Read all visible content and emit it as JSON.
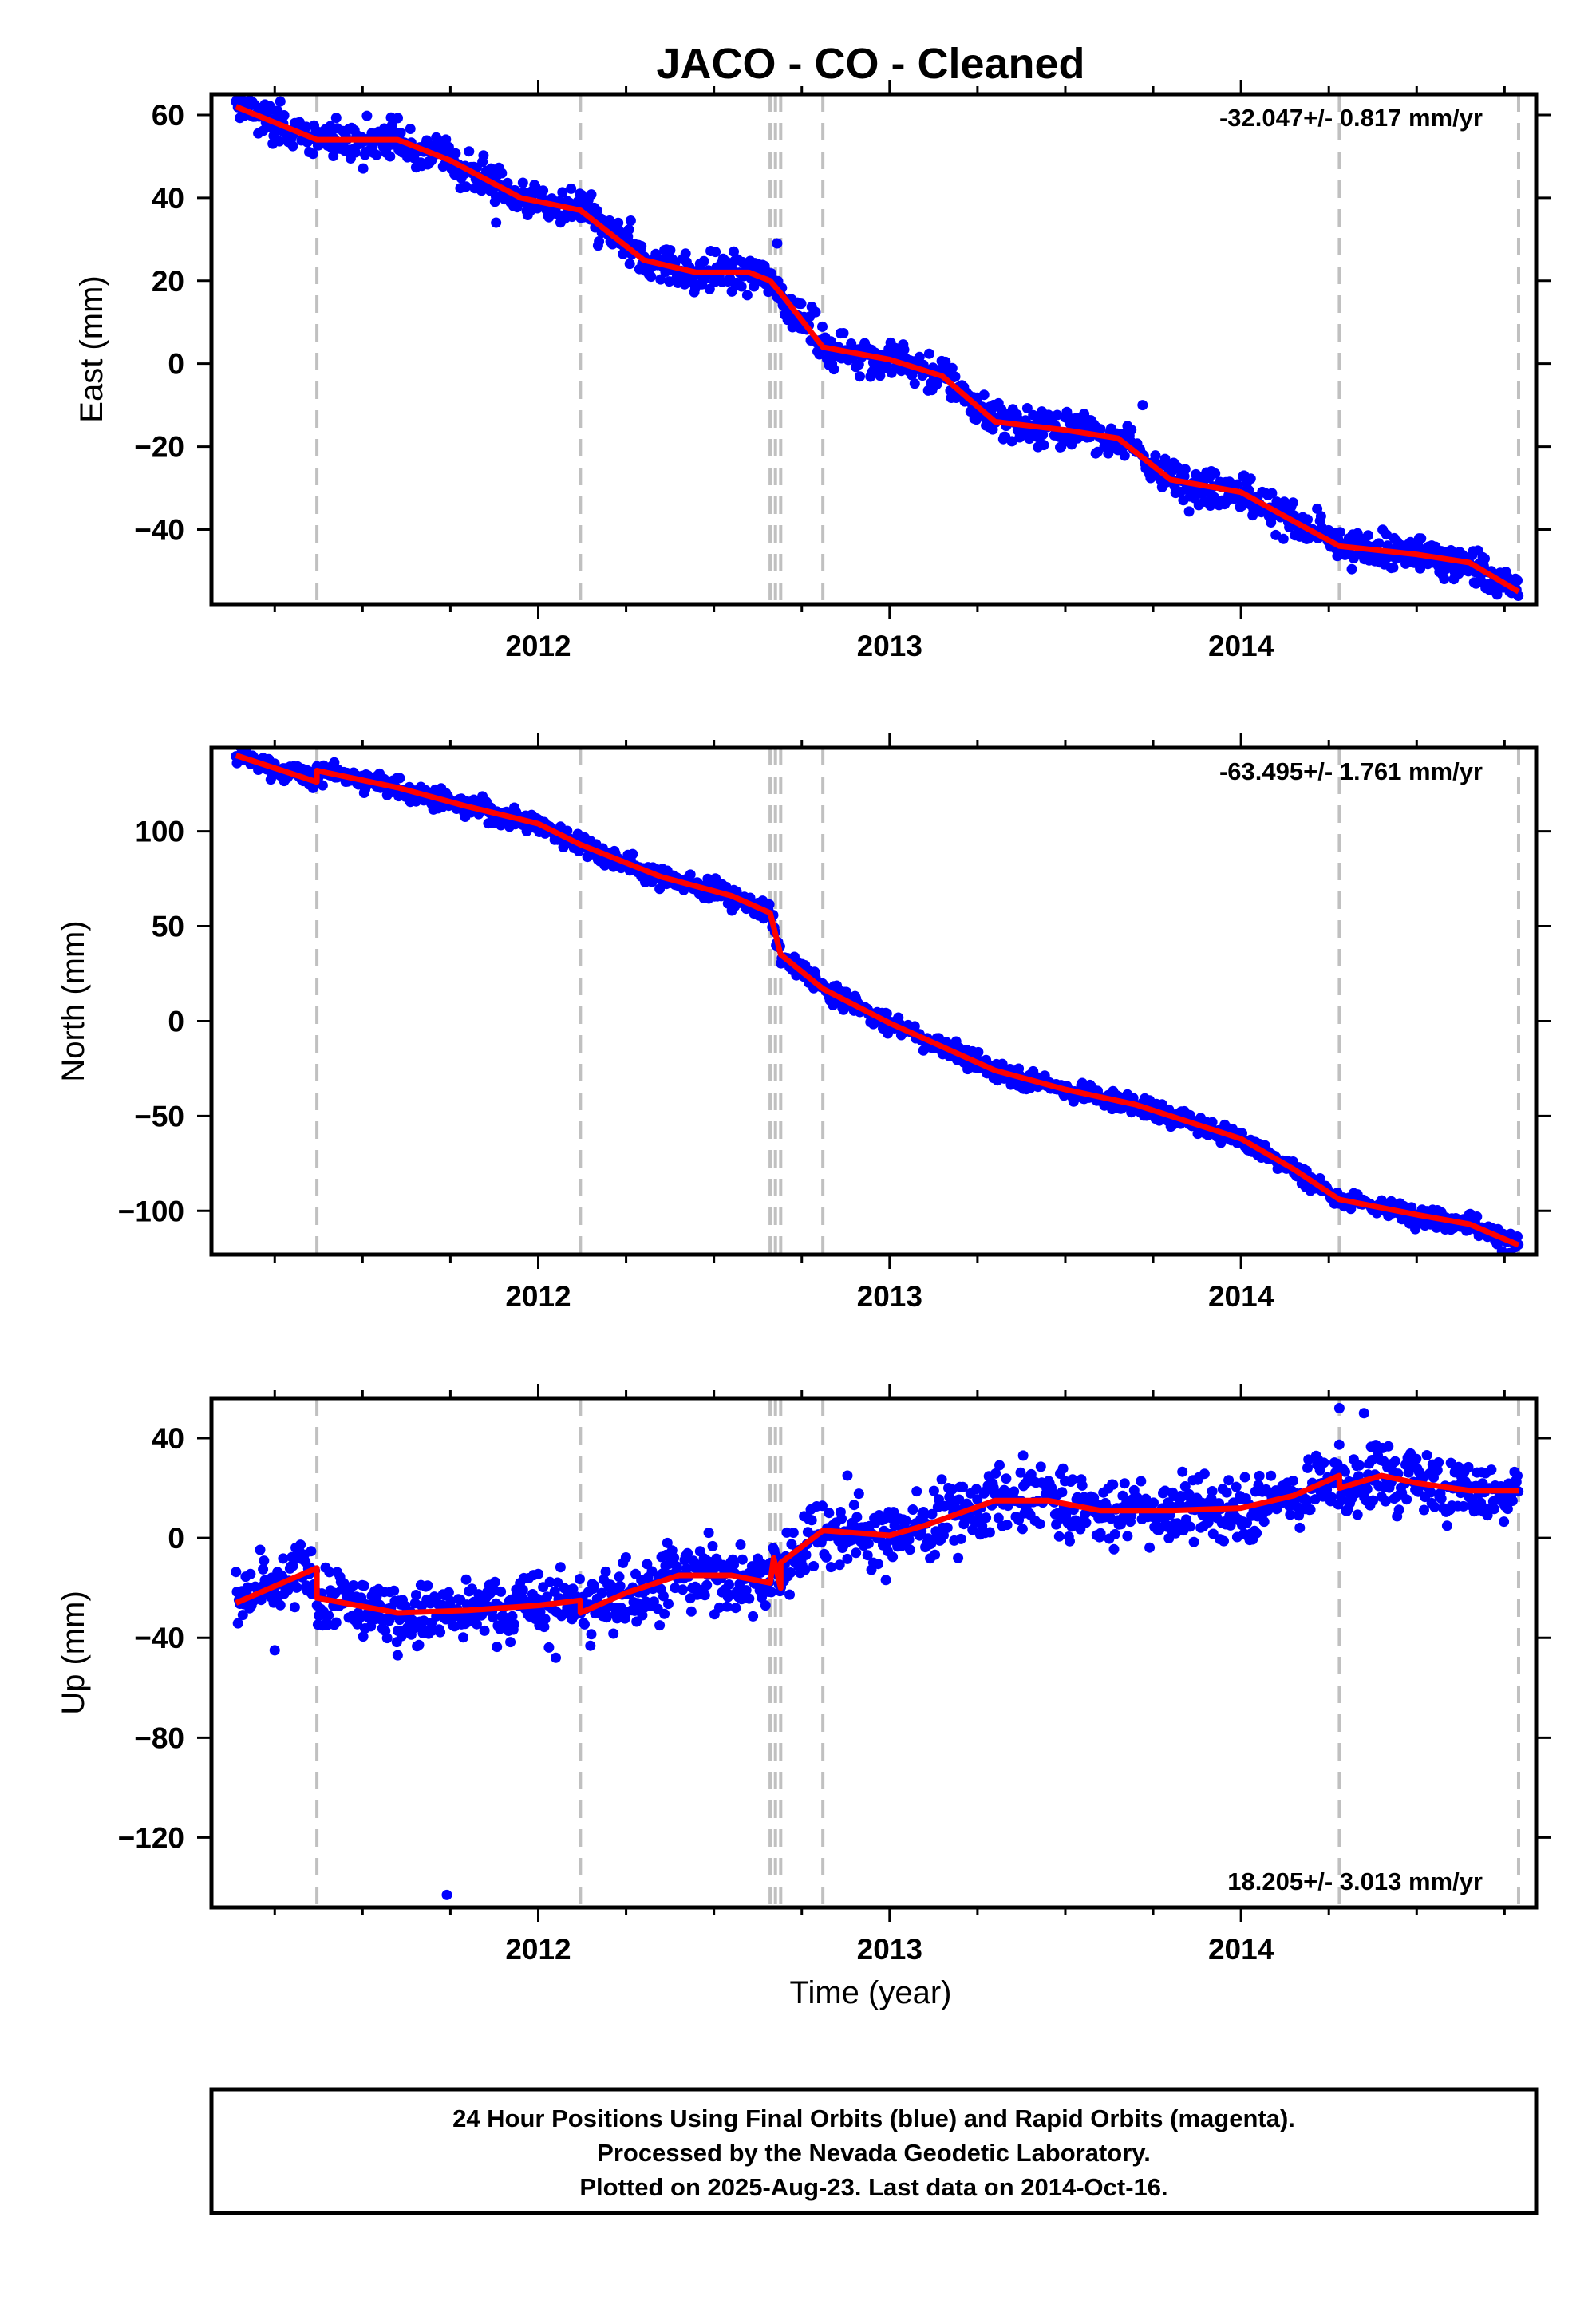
{
  "title": "JACO  - CO - Cleaned",
  "xlabel": "Time (year)",
  "footnote": [
    "24 Hour Positions Using Final Orbits (blue) and Rapid Orbits (magenta).",
    "Processed by the Nevada Geodetic Laboratory.",
    "Plotted on 2025-Aug-23. Last data on 2014-Oct-16."
  ],
  "colors": {
    "points": "#0000ff",
    "model": "#ff0000",
    "event_lines": "#c0c0c0",
    "axis": "#000000"
  },
  "chart_data": [
    {
      "type": "scatter",
      "ylabel": "East (mm)",
      "rate_text": "-32.047+/- 0.817 mm/yr",
      "rate_position": "top-right",
      "xlim": [
        2011.07,
        2014.84
      ],
      "ylim": [
        -58,
        65
      ],
      "x_ticks": [
        2012,
        2013,
        2014
      ],
      "y_ticks": [
        -40,
        -20,
        0,
        20,
        40,
        60
      ],
      "event_lines": [
        2011.37,
        2012.12,
        2012.66,
        2012.675,
        2012.69,
        2012.81,
        2014.28,
        2014.79
      ],
      "model": [
        [
          2011.14,
          62
        ],
        [
          2011.37,
          54
        ],
        [
          2011.6,
          54
        ],
        [
          2011.75,
          49
        ],
        [
          2011.95,
          40
        ],
        [
          2012.12,
          37
        ],
        [
          2012.3,
          25
        ],
        [
          2012.45,
          22
        ],
        [
          2012.6,
          22
        ],
        [
          2012.66,
          20
        ],
        [
          2012.69,
          17
        ],
        [
          2012.81,
          4
        ],
        [
          2013.0,
          1
        ],
        [
          2013.15,
          -3
        ],
        [
          2013.3,
          -14
        ],
        [
          2013.5,
          -16
        ],
        [
          2013.65,
          -18
        ],
        [
          2013.8,
          -28
        ],
        [
          2014.0,
          -31
        ],
        [
          2014.15,
          -38
        ],
        [
          2014.28,
          -44
        ],
        [
          2014.5,
          -46
        ],
        [
          2014.65,
          -48
        ],
        [
          2014.79,
          -55
        ]
      ],
      "scatter": {
        "noise": 2.3,
        "outliers": [
          [
            2013.2,
            -8
          ],
          [
            2013.72,
            -10
          ],
          [
            2012.68,
            29
          ],
          [
            2011.88,
            34
          ]
        ]
      }
    },
    {
      "type": "scatter",
      "ylabel": "North (mm)",
      "rate_text": "-63.495+/- 1.761 mm/yr",
      "rate_position": "top-right",
      "xlim": [
        2011.07,
        2014.84
      ],
      "ylim": [
        -123,
        144
      ],
      "x_ticks": [
        2012,
        2013,
        2014
      ],
      "y_ticks": [
        -100,
        -50,
        0,
        50,
        100
      ],
      "event_lines": [
        2011.37,
        2012.12,
        2012.66,
        2012.675,
        2012.69,
        2012.81,
        2014.28,
        2014.79
      ],
      "model": [
        [
          2011.14,
          140
        ],
        [
          2011.37,
          126
        ],
        [
          2011.37,
          132
        ],
        [
          2011.6,
          123
        ],
        [
          2011.8,
          113
        ],
        [
          2012.0,
          104
        ],
        [
          2012.12,
          93
        ],
        [
          2012.35,
          76
        ],
        [
          2012.55,
          66
        ],
        [
          2012.66,
          57
        ],
        [
          2012.69,
          35
        ],
        [
          2012.81,
          17
        ],
        [
          2013.0,
          -1
        ],
        [
          2013.3,
          -26
        ],
        [
          2013.5,
          -36
        ],
        [
          2013.7,
          -44
        ],
        [
          2013.9,
          -56
        ],
        [
          2014.0,
          -62
        ],
        [
          2014.15,
          -78
        ],
        [
          2014.28,
          -94
        ],
        [
          2014.5,
          -102
        ],
        [
          2014.65,
          -107
        ],
        [
          2014.79,
          -118
        ]
      ],
      "scatter": {
        "noise": 2.6,
        "outliers": []
      }
    },
    {
      "type": "scatter",
      "ylabel": "Up (mm)",
      "rate_text": "18.205+/- 3.013 mm/yr",
      "rate_position": "bottom-right",
      "xlim": [
        2011.07,
        2014.84
      ],
      "ylim": [
        -148,
        56
      ],
      "x_ticks": [
        2012,
        2013,
        2014
      ],
      "y_ticks": [
        -120,
        -80,
        -40,
        0,
        40
      ],
      "event_lines": [
        2011.37,
        2012.12,
        2012.66,
        2012.675,
        2012.69,
        2012.81,
        2014.28,
        2014.79
      ],
      "model": [
        [
          2011.14,
          -26
        ],
        [
          2011.37,
          -12
        ],
        [
          2011.37,
          -24
        ],
        [
          2011.6,
          -30
        ],
        [
          2011.8,
          -29
        ],
        [
          2012.0,
          -27
        ],
        [
          2012.12,
          -25
        ],
        [
          2012.12,
          -30
        ],
        [
          2012.25,
          -22
        ],
        [
          2012.4,
          -15
        ],
        [
          2012.55,
          -15
        ],
        [
          2012.66,
          -18
        ],
        [
          2012.67,
          -8
        ],
        [
          2012.69,
          -20
        ],
        [
          2012.69,
          -10
        ],
        [
          2012.81,
          3
        ],
        [
          2013.0,
          1
        ],
        [
          2013.1,
          5
        ],
        [
          2013.3,
          15
        ],
        [
          2013.45,
          15
        ],
        [
          2013.6,
          11
        ],
        [
          2013.8,
          11
        ],
        [
          2014.0,
          12
        ],
        [
          2014.15,
          17
        ],
        [
          2014.28,
          25
        ],
        [
          2014.28,
          20
        ],
        [
          2014.4,
          25
        ],
        [
          2014.5,
          22
        ],
        [
          2014.65,
          19
        ],
        [
          2014.79,
          19
        ]
      ],
      "scatter": {
        "noise": 6.5,
        "outliers": [
          [
            2011.74,
            -143
          ],
          [
            2011.25,
            -45
          ],
          [
            2011.6,
            -47
          ],
          [
            2012.05,
            -48
          ],
          [
            2014.28,
            52
          ],
          [
            2014.35,
            50
          ],
          [
            2013.38,
            33
          ],
          [
            2012.88,
            25
          ]
        ]
      }
    }
  ]
}
